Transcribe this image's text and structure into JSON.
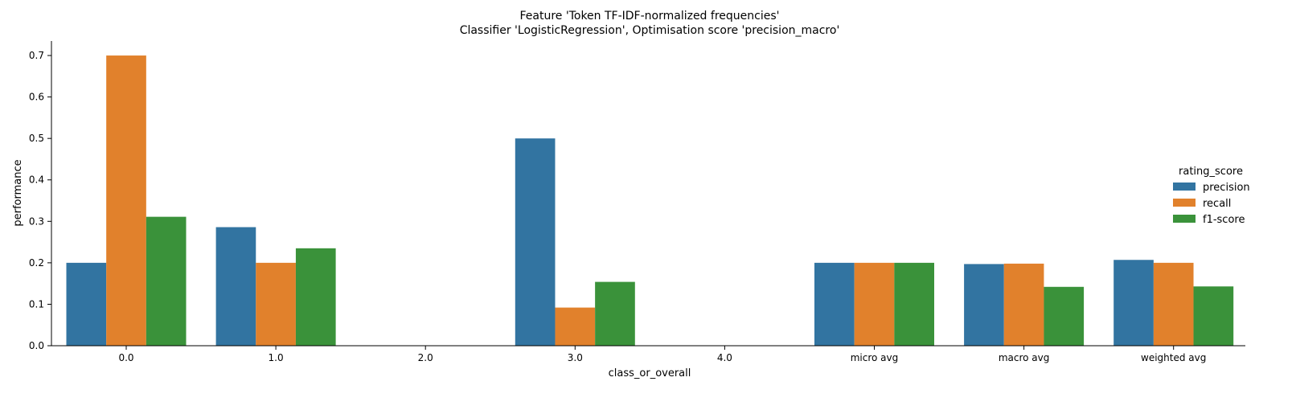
{
  "chart_data": {
    "type": "bar",
    "title": "Feature 'Token TF-IDF-normalized frequencies'",
    "subtitle": "Classifier 'LogisticRegression', Optimisation score 'precision_macro'",
    "xlabel": "class_or_overall",
    "ylabel": "performance",
    "categories": [
      "0.0",
      "1.0",
      "2.0",
      "3.0",
      "4.0",
      "micro avg",
      "macro avg",
      "weighted avg"
    ],
    "series": [
      {
        "name": "precision",
        "color": "#3274a1",
        "values": [
          0.2,
          0.286,
          0.0,
          0.5,
          0.0,
          0.2,
          0.197,
          0.207
        ]
      },
      {
        "name": "recall",
        "color": "#e1812c",
        "values": [
          0.7,
          0.2,
          0.0,
          0.092,
          0.0,
          0.2,
          0.198,
          0.2
        ]
      },
      {
        "name": "f1-score",
        "color": "#3a923a",
        "values": [
          0.311,
          0.235,
          0.0,
          0.154,
          0.0,
          0.2,
          0.142,
          0.143
        ]
      }
    ],
    "ylim": [
      0,
      0.735
    ],
    "yticks": [
      "0.0",
      "0.1",
      "0.2",
      "0.3",
      "0.4",
      "0.5",
      "0.6",
      "0.7"
    ],
    "grid": false,
    "legend": {
      "title": "rating_score",
      "position": "right"
    }
  }
}
